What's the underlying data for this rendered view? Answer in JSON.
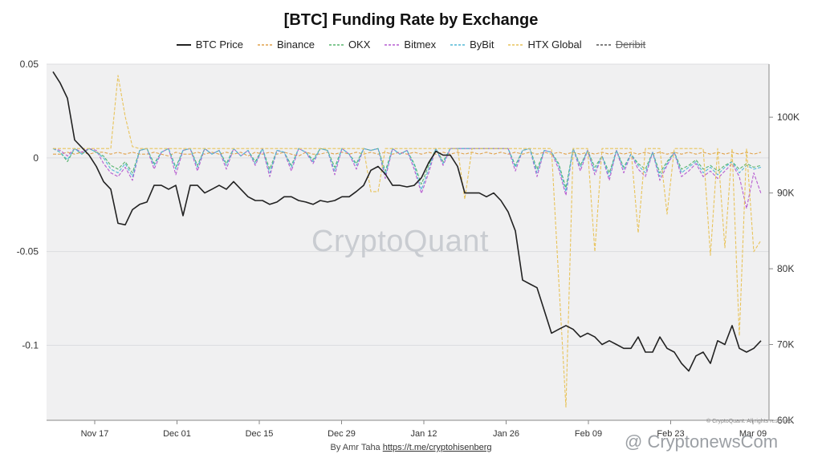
{
  "chart_data": {
    "type": "line",
    "title": "[BTC] Funding Rate by Exchange",
    "legend_position": "top-center",
    "grid": "horizontal",
    "x_ticks": [
      "Nov 17",
      "Dec 01",
      "Dec 15",
      "Dec 29",
      "Jan 12",
      "Jan 26",
      "Feb 09",
      "Feb 23",
      "Mar 09"
    ],
    "y_left": {
      "ticks": [
        "0.05",
        "0",
        "-0.05",
        "-0.1"
      ],
      "range": [
        -0.14,
        0.05
      ]
    },
    "y_right": {
      "ticks": [
        "100K",
        "90K",
        "80K",
        "70K",
        "60K"
      ],
      "range": [
        60000,
        107000
      ]
    },
    "legend": [
      {
        "name": "BTC Price",
        "color": "#222222",
        "dash": "solid"
      },
      {
        "name": "Binance",
        "color": "#e0a24b",
        "dash": "dashed"
      },
      {
        "name": "OKX",
        "color": "#58b56e",
        "dash": "dashed"
      },
      {
        "name": "Bitmex",
        "color": "#b65cd0",
        "dash": "dashed"
      },
      {
        "name": "ByBit",
        "color": "#52b8d6",
        "dash": "dashed"
      },
      {
        "name": "HTX Global",
        "color": "#e8c35a",
        "dash": "dashed"
      },
      {
        "name": "Deribit",
        "color": "#555555",
        "dash": "dashed",
        "hidden": true
      }
    ],
    "series": [
      {
        "name": "BTC Price",
        "axis": "right",
        "color": "#222222",
        "values": [
          106000,
          104500,
          102500,
          97000,
          96000,
          95000,
          93500,
          91500,
          90500,
          86000,
          85800,
          87800,
          88500,
          88800,
          91000,
          91000,
          90500,
          91000,
          87000,
          91000,
          91000,
          90000,
          90500,
          91000,
          90500,
          91500,
          90500,
          89500,
          89000,
          89000,
          88500,
          88800,
          89500,
          89500,
          89000,
          88800,
          88500,
          89000,
          88800,
          89000,
          89500,
          89500,
          90200,
          91000,
          93000,
          93500,
          92500,
          91000,
          91000,
          90800,
          91000,
          92000,
          94000,
          95500,
          95000,
          95000,
          93500,
          90000,
          90000,
          90000,
          89500,
          90000,
          89000,
          87500,
          85000,
          78500,
          78000,
          77500,
          74500,
          71500,
          72000,
          72500,
          72000,
          71000,
          71500,
          71000,
          70000,
          70500,
          70000,
          69500,
          69500,
          71000,
          69000,
          69000,
          71000,
          69500,
          69000,
          67500,
          66500,
          68500,
          69000,
          67500,
          70500,
          70000,
          72500,
          69500,
          69000,
          69500,
          70500
        ],
        "note": "BTC price in USD"
      },
      {
        "name": "Binance",
        "axis": "left",
        "color": "#e0a24b",
        "values": [
          0.002,
          0.002,
          0.003,
          0.002,
          0.003,
          0.002,
          0.003,
          0.003,
          0.002,
          0.003,
          0.002,
          0.003,
          0.002,
          0.002,
          0.003,
          0.002,
          0.001,
          0.003,
          0.002,
          0.002,
          0.003,
          0.002,
          0.003,
          0.002,
          0.003,
          0.002,
          0.003,
          0.001,
          0.003,
          0.002,
          0.003,
          0.002,
          0.003,
          0.002,
          0.001,
          0.003,
          0.002,
          0.002,
          0.003,
          0.002,
          0.003,
          0.002,
          0.003,
          0.002,
          0.003,
          0.002,
          0.003,
          0.002,
          0.003,
          0.002,
          0.003,
          0.002,
          0.003,
          0.002,
          0.003,
          0.002,
          0.003,
          0.002,
          0.003,
          0.002,
          0.003,
          0.002,
          0.003,
          0.002,
          0.003,
          0.002,
          0.003,
          0.002,
          0.003,
          0.002,
          0.003,
          0.002,
          0.003,
          0.002,
          0.003,
          0.002,
          0.003,
          0.002,
          0.003,
          0.002,
          0.003,
          0.002,
          0.003,
          0.002,
          0.003,
          0.002,
          0.003,
          0.002,
          0.003,
          0.002,
          0.003,
          0.002,
          0.003,
          0.002,
          0.003,
          0.002,
          0.003,
          0.002,
          0.003
        ]
      },
      {
        "name": "OKX",
        "axis": "left",
        "color": "#58b56e",
        "values": [
          0.005,
          0.003,
          -0.002,
          0.005,
          0.002,
          0.005,
          0.003,
          0.001,
          -0.004,
          -0.006,
          -0.002,
          -0.008,
          0.004,
          0.005,
          -0.003,
          0.003,
          0.005,
          -0.005,
          0.004,
          0.005,
          -0.004,
          0.005,
          0.002,
          0.004,
          -0.003,
          0.005,
          0.001,
          0.004,
          -0.002,
          0.005,
          -0.006,
          0.004,
          0.003,
          -0.004,
          0.005,
          0.003,
          -0.001,
          0.005,
          0.004,
          -0.005,
          0.005,
          0.002,
          -0.003,
          0.005,
          0.004,
          0.005,
          -0.007,
          0.005,
          0.002,
          0.004,
          -0.003,
          -0.014,
          -0.004,
          0.005,
          -0.002,
          0.005,
          0.005,
          0.005,
          0.005,
          0.005,
          0.005,
          0.005,
          0.005,
          0.005,
          -0.004,
          0.004,
          0.005,
          -0.006,
          0.004,
          0.003,
          -0.003,
          -0.016,
          0.005,
          -0.004,
          0.004,
          -0.005,
          0.001,
          -0.008,
          0.004,
          -0.005,
          0.002,
          -0.003,
          -0.006,
          0.003,
          -0.008,
          -0.002,
          0.003,
          -0.006,
          -0.004,
          -0.001,
          -0.006,
          -0.004,
          -0.007,
          -0.004,
          -0.002,
          -0.006,
          -0.003,
          -0.005,
          -0.004
        ]
      },
      {
        "name": "Bitmex",
        "axis": "left",
        "color": "#b65cd0",
        "values": [
          0.005,
          0.004,
          0.001,
          0.005,
          0.003,
          0.005,
          0.004,
          -0.003,
          -0.008,
          -0.01,
          -0.005,
          -0.012,
          0.004,
          0.005,
          -0.006,
          0.003,
          0.005,
          -0.009,
          0.004,
          0.005,
          -0.007,
          0.005,
          0.002,
          0.004,
          -0.006,
          0.005,
          0.001,
          0.004,
          -0.004,
          0.005,
          -0.01,
          0.004,
          0.003,
          -0.007,
          0.005,
          0.003,
          -0.003,
          0.005,
          0.004,
          -0.009,
          0.005,
          0.002,
          -0.006,
          0.005,
          0.004,
          0.005,
          -0.011,
          0.005,
          0.002,
          0.004,
          -0.006,
          -0.019,
          -0.008,
          0.005,
          -0.004,
          0.005,
          0.005,
          0.005,
          0.005,
          0.005,
          0.005,
          0.005,
          0.005,
          0.005,
          -0.007,
          0.004,
          0.005,
          -0.01,
          0.004,
          0.003,
          -0.006,
          -0.02,
          0.005,
          -0.007,
          0.004,
          -0.009,
          0.001,
          -0.012,
          0.004,
          -0.008,
          0.002,
          -0.006,
          -0.01,
          0.003,
          -0.012,
          -0.004,
          0.003,
          -0.01,
          -0.007,
          -0.003,
          -0.01,
          -0.007,
          -0.011,
          -0.007,
          -0.003,
          -0.01,
          -0.027,
          -0.008,
          -0.019
        ]
      },
      {
        "name": "ByBit",
        "axis": "left",
        "color": "#52b8d6",
        "values": [
          0.005,
          0.003,
          -0.001,
          0.005,
          0.002,
          0.005,
          0.003,
          0.0,
          -0.006,
          -0.008,
          -0.003,
          -0.01,
          0.004,
          0.005,
          -0.004,
          0.003,
          0.005,
          -0.006,
          0.004,
          0.005,
          -0.005,
          0.005,
          0.002,
          0.004,
          -0.004,
          0.005,
          0.001,
          0.004,
          -0.003,
          0.005,
          -0.008,
          0.004,
          0.003,
          -0.005,
          0.005,
          0.003,
          -0.002,
          0.005,
          0.004,
          -0.007,
          0.005,
          0.002,
          -0.004,
          0.005,
          0.004,
          0.005,
          -0.009,
          0.005,
          0.002,
          0.004,
          -0.004,
          -0.017,
          -0.006,
          0.005,
          -0.003,
          0.005,
          0.005,
          0.005,
          0.005,
          0.005,
          0.005,
          0.005,
          0.005,
          0.005,
          -0.005,
          0.004,
          0.005,
          -0.008,
          0.004,
          0.003,
          -0.004,
          -0.018,
          0.005,
          -0.005,
          0.004,
          -0.007,
          0.001,
          -0.01,
          0.004,
          -0.006,
          0.002,
          -0.004,
          -0.008,
          0.003,
          -0.01,
          -0.003,
          0.003,
          -0.008,
          -0.005,
          -0.002,
          -0.008,
          -0.005,
          -0.009,
          -0.005,
          -0.002,
          -0.008,
          -0.004,
          -0.006,
          -0.005
        ]
      },
      {
        "name": "HTX Global",
        "axis": "left",
        "color": "#e8c35a",
        "values": [
          0.005,
          0.005,
          0.005,
          0.005,
          0.005,
          0.005,
          0.005,
          0.005,
          0.005,
          0.044,
          0.022,
          0.006,
          0.005,
          0.005,
          0.005,
          0.005,
          0.005,
          0.005,
          0.005,
          0.005,
          0.005,
          0.005,
          0.005,
          0.005,
          0.005,
          0.005,
          0.005,
          0.005,
          0.005,
          0.005,
          0.005,
          0.005,
          0.005,
          0.005,
          0.005,
          0.005,
          0.005,
          0.005,
          0.005,
          0.005,
          0.005,
          0.005,
          0.005,
          0.005,
          -0.018,
          -0.018,
          0.005,
          0.005,
          0.005,
          0.005,
          0.005,
          0.005,
          0.005,
          0.005,
          0.005,
          0.005,
          0.005,
          -0.022,
          0.005,
          0.005,
          0.005,
          0.005,
          0.005,
          0.005,
          0.005,
          0.005,
          0.005,
          0.005,
          0.005,
          0.005,
          -0.065,
          -0.133,
          0.005,
          0.005,
          0.005,
          -0.05,
          0.005,
          0.005,
          0.005,
          0.005,
          0.005,
          -0.04,
          0.005,
          0.005,
          0.005,
          -0.03,
          0.005,
          0.005,
          0.005,
          0.005,
          0.005,
          -0.052,
          0.005,
          -0.048,
          0.005,
          -0.095,
          0.005,
          -0.05,
          -0.044
        ]
      }
    ]
  },
  "footer": {
    "by": "By Amr Taha",
    "link": "https://t.me/cryptohisenberg"
  },
  "watermarks": {
    "center": "CryptoQuant",
    "corner": "@ CryptonewsCom",
    "copyright": "© CryptoQuant. All rights reserved"
  }
}
